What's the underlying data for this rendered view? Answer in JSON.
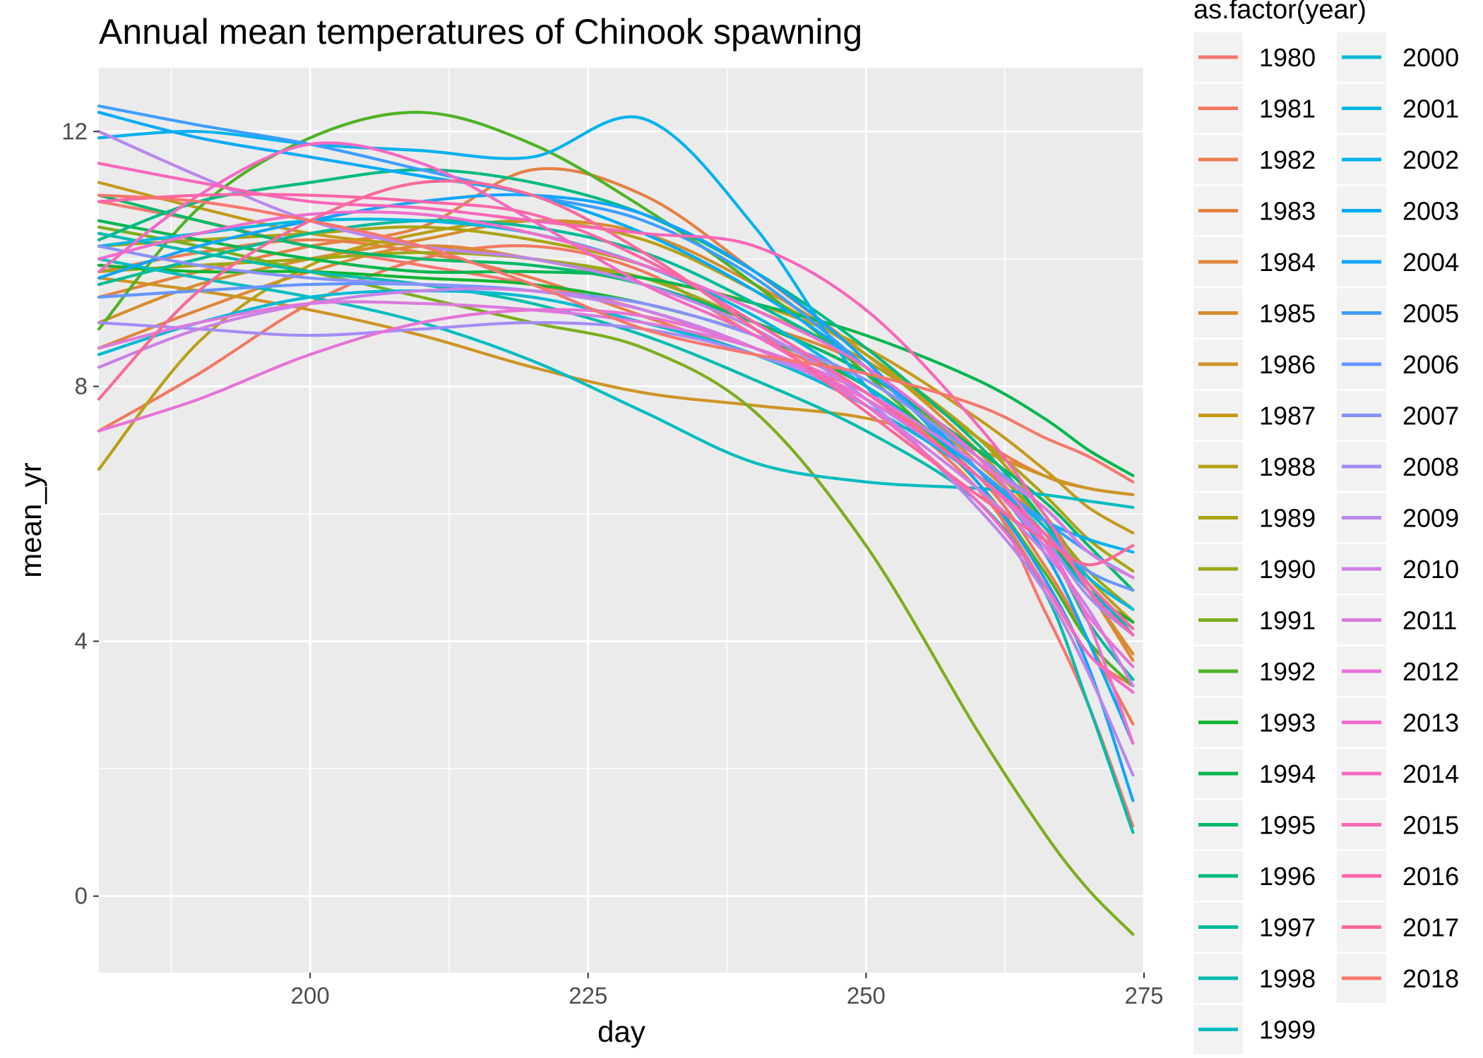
{
  "chart_data": {
    "type": "line",
    "title": "Annual mean temperatures of Chinook spawning",
    "xlabel": "day",
    "ylabel": "mean_yr",
    "xlim": [
      181,
      275
    ],
    "ylim": [
      -1.2,
      13.0
    ],
    "x_ticks": [
      200,
      225,
      250,
      275
    ],
    "y_ticks": [
      0,
      4,
      8,
      12
    ],
    "grid": true,
    "legend": {
      "title": "as.factor(year)",
      "placement": "right"
    },
    "x": [
      181,
      190,
      200,
      210,
      220,
      230,
      240,
      250,
      260,
      266,
      270,
      274
    ],
    "series": [
      {
        "name": "1980",
        "color": "#F8766D",
        "values": [
          10.9,
          10.6,
          10.2,
          9.9,
          9.6,
          9.2,
          8.6,
          7.8,
          6.5,
          4.5,
          3.0,
          1.1
        ]
      },
      {
        "name": "1981",
        "color": "#F2795F",
        "values": [
          7.3,
          8.2,
          9.3,
          10.0,
          10.2,
          9.8,
          8.8,
          7.9,
          6.4,
          4.9,
          3.8,
          3.3
        ]
      },
      {
        "name": "1982",
        "color": "#EC7C51",
        "values": [
          9.8,
          10.1,
          10.3,
          10.1,
          9.7,
          9.1,
          8.5,
          7.9,
          6.6,
          5.2,
          4.0,
          2.7
        ]
      },
      {
        "name": "1983",
        "color": "#E68043",
        "values": [
          9.4,
          9.8,
          10.2,
          10.5,
          11.4,
          11.0,
          9.8,
          8.5,
          7.2,
          6.6,
          6.4,
          6.3
        ]
      },
      {
        "name": "1984",
        "color": "#DF8737",
        "values": [
          8.6,
          9.2,
          9.8,
          10.2,
          10.0,
          9.6,
          9.0,
          8.3,
          6.8,
          5.8,
          4.8,
          3.7
        ]
      },
      {
        "name": "1985",
        "color": "#D78D2C",
        "values": [
          9.0,
          9.6,
          10.0,
          10.3,
          10.6,
          10.4,
          9.6,
          8.5,
          7.0,
          5.8,
          4.8,
          3.8
        ]
      },
      {
        "name": "1986",
        "color": "#CE9422",
        "values": [
          9.7,
          9.5,
          9.2,
          8.8,
          8.3,
          7.9,
          7.7,
          7.5,
          7.0,
          6.6,
          6.4,
          6.3
        ]
      },
      {
        "name": "1987",
        "color": "#C49A1B",
        "values": [
          11.2,
          10.8,
          10.4,
          10.2,
          10.0,
          9.7,
          9.3,
          8.6,
          7.5,
          6.7,
          6.1,
          5.7
        ]
      },
      {
        "name": "1988",
        "color": "#B8A016",
        "values": [
          6.7,
          8.7,
          9.9,
          10.4,
          10.6,
          10.3,
          9.5,
          8.5,
          7.2,
          6.0,
          5.0,
          4.3
        ]
      },
      {
        "name": "1989",
        "color": "#ABA414",
        "values": [
          10.2,
          10.3,
          10.4,
          10.5,
          10.3,
          9.9,
          9.2,
          8.4,
          7.2,
          6.3,
          5.6,
          5.1
        ]
      },
      {
        "name": "1990",
        "color": "#9CA817",
        "values": [
          9.8,
          9.9,
          10.0,
          10.1,
          10.0,
          9.7,
          9.0,
          8.2,
          6.9,
          5.9,
          5.1,
          4.5
        ]
      },
      {
        "name": "1991",
        "color": "#7BAE1E",
        "values": [
          10.5,
          10.2,
          9.8,
          9.4,
          9.0,
          8.6,
          7.6,
          5.5,
          2.6,
          1.0,
          0.1,
          -0.6
        ]
      },
      {
        "name": "1992",
        "color": "#4EB323",
        "values": [
          8.9,
          10.8,
          11.9,
          12.3,
          11.8,
          10.8,
          9.6,
          8.2,
          6.5,
          5.1,
          4.0,
          3.3
        ]
      },
      {
        "name": "1993",
        "color": "#11B530",
        "values": [
          9.9,
          9.8,
          9.8,
          9.7,
          9.6,
          9.3,
          8.8,
          8.0,
          6.7,
          5.7,
          4.8,
          4.3
        ]
      },
      {
        "name": "1994",
        "color": "#00B74E",
        "values": [
          10.6,
          10.3,
          10.0,
          9.8,
          9.8,
          9.7,
          9.3,
          8.8,
          8.1,
          7.5,
          7.0,
          6.6
        ]
      },
      {
        "name": "1995",
        "color": "#00B96A",
        "values": [
          11.0,
          10.6,
          10.2,
          10.0,
          9.9,
          9.6,
          9.0,
          8.2,
          7.0,
          6.2,
          5.5,
          4.8
        ]
      },
      {
        "name": "1996",
        "color": "#00BA82",
        "values": [
          10.3,
          10.9,
          11.2,
          11.4,
          11.2,
          10.7,
          9.8,
          8.6,
          7.1,
          5.9,
          4.9,
          4.1
        ]
      },
      {
        "name": "1997",
        "color": "#00BB99",
        "values": [
          9.6,
          10.0,
          10.4,
          10.6,
          10.5,
          10.1,
          9.3,
          8.3,
          6.9,
          5.6,
          4.3,
          3.4
        ]
      },
      {
        "name": "1998",
        "color": "#00BCAD",
        "values": [
          10.4,
          10.1,
          9.8,
          9.6,
          9.3,
          8.8,
          8.1,
          7.3,
          6.2,
          4.8,
          3.0,
          1.0
        ]
      },
      {
        "name": "1999",
        "color": "#00BCC1",
        "values": [
          10.0,
          9.7,
          9.4,
          9.0,
          8.4,
          7.6,
          6.8,
          6.5,
          6.4,
          6.3,
          6.2,
          6.1
        ]
      },
      {
        "name": "2000",
        "color": "#00BAD2",
        "values": [
          8.5,
          9.0,
          9.4,
          9.5,
          9.4,
          9.0,
          8.5,
          7.7,
          6.6,
          5.6,
          4.8,
          4.2
        ]
      },
      {
        "name": "2001",
        "color": "#00B7E1",
        "values": [
          10.2,
          10.4,
          10.6,
          10.6,
          10.4,
          9.9,
          9.1,
          8.0,
          6.7,
          5.8,
          5.0,
          4.5
        ]
      },
      {
        "name": "2002",
        "color": "#00B2EE",
        "values": [
          11.9,
          12.0,
          11.8,
          11.7,
          11.6,
          12.2,
          10.5,
          8.0,
          6.6,
          5.9,
          5.6,
          5.4
        ]
      },
      {
        "name": "2003",
        "color": "#00ABF8",
        "values": [
          12.3,
          11.9,
          11.6,
          11.3,
          11.0,
          10.4,
          9.5,
          8.3,
          6.7,
          5.4,
          4.0,
          2.4
        ]
      },
      {
        "name": "2004",
        "color": "#11A4FE",
        "values": [
          9.7,
          10.2,
          10.6,
          10.9,
          11.0,
          10.7,
          9.8,
          8.4,
          6.5,
          5.0,
          3.6,
          1.5
        ]
      },
      {
        "name": "2005",
        "color": "#3C9EFF",
        "values": [
          12.4,
          12.1,
          11.8,
          11.4,
          11.0,
          10.6,
          9.7,
          8.3,
          6.7,
          5.9,
          5.4,
          5.0
        ]
      },
      {
        "name": "2006",
        "color": "#6496FF",
        "values": [
          9.4,
          9.5,
          9.6,
          9.6,
          9.5,
          9.2,
          8.6,
          7.8,
          6.6,
          5.7,
          5.1,
          4.8
        ]
      },
      {
        "name": "2007",
        "color": "#8990FB",
        "values": [
          10.2,
          9.9,
          9.7,
          9.6,
          9.5,
          9.3,
          8.8,
          8.1,
          6.9,
          6.1,
          5.4,
          5.0
        ]
      },
      {
        "name": "2008",
        "color": "#A48CF5",
        "values": [
          9.0,
          8.9,
          8.8,
          8.9,
          9.0,
          8.9,
          8.5,
          7.8,
          6.6,
          5.6,
          4.7,
          4.1
        ]
      },
      {
        "name": "2009",
        "color": "#B986EE",
        "values": [
          12.0,
          11.3,
          10.6,
          10.2,
          10.0,
          9.6,
          8.9,
          7.8,
          6.1,
          4.8,
          3.5,
          1.9
        ]
      },
      {
        "name": "2010",
        "color": "#CB80E6",
        "values": [
          8.3,
          8.9,
          9.3,
          9.5,
          9.5,
          9.2,
          8.6,
          7.7,
          6.4,
          5.4,
          4.5,
          3.3
        ]
      },
      {
        "name": "2011",
        "color": "#DA7ADE",
        "values": [
          8.6,
          9.0,
          9.3,
          9.3,
          9.2,
          9.0,
          8.6,
          7.9,
          6.8,
          6.1,
          5.4,
          5.0
        ]
      },
      {
        "name": "2012",
        "color": "#E673D6",
        "values": [
          7.3,
          7.8,
          8.5,
          9.0,
          9.2,
          9.1,
          8.6,
          7.8,
          6.6,
          5.5,
          4.4,
          3.6
        ]
      },
      {
        "name": "2013",
        "color": "#EF6ECD",
        "values": [
          10.0,
          10.4,
          10.7,
          10.7,
          10.4,
          9.9,
          9.2,
          8.3,
          6.9,
          5.6,
          4.3,
          2.4
        ]
      },
      {
        "name": "2014",
        "color": "#F569C3",
        "values": [
          9.8,
          11.0,
          11.8,
          11.5,
          10.6,
          9.6,
          8.8,
          7.7,
          6.2,
          4.9,
          3.8,
          3.2
        ]
      },
      {
        "name": "2015",
        "color": "#F966B8",
        "values": [
          11.5,
          11.2,
          10.9,
          10.8,
          10.6,
          10.4,
          10.2,
          9.2,
          7.4,
          6.0,
          4.8,
          4.1
        ]
      },
      {
        "name": "2016",
        "color": "#FB66A9",
        "values": [
          10.9,
          11.0,
          11.0,
          10.9,
          10.7,
          10.0,
          9.0,
          7.9,
          6.6,
          5.7,
          4.9,
          4.2
        ]
      },
      {
        "name": "2017",
        "color": "#FA6999",
        "values": [
          7.8,
          9.5,
          10.6,
          11.2,
          11.0,
          10.1,
          8.9,
          7.6,
          6.3,
          5.6,
          5.2,
          5.5
        ]
      },
      {
        "name": "2018",
        "color": "#F8766D",
        "values": [
          11.0,
          10.9,
          10.6,
          10.2,
          9.6,
          8.9,
          8.5,
          8.2,
          7.7,
          7.2,
          6.9,
          6.5
        ]
      }
    ]
  }
}
